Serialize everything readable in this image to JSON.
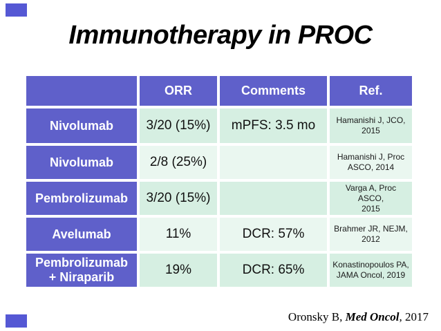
{
  "slide": {
    "title": "Immunotherapy in PROC",
    "citation": {
      "prefix": "Oronsky B, ",
      "journal": "Med Oncol",
      "suffix": ", 2017"
    }
  },
  "table": {
    "columns": [
      "",
      "ORR",
      "Comments",
      "Ref."
    ],
    "rows": [
      {
        "drug": "Nivolumab",
        "orr": "3/20 (15%)",
        "comments": "mPFS: 3.5 mo",
        "ref": "Hamanishi J, JCO,\n2015"
      },
      {
        "drug": "Nivolumab",
        "orr": "2/8 (25%)",
        "comments": "",
        "ref": "Hamanishi J, Proc\nASCO, 2014"
      },
      {
        "drug": "Pembrolizumab",
        "orr": "3/20 (15%)",
        "comments": "",
        "ref": "Varga A, Proc ASCO,\n2015"
      },
      {
        "drug": "Avelumab",
        "orr": "11%",
        "comments": "DCR: 57%",
        "ref": "Brahmer JR, NEJM,\n2012"
      },
      {
        "drug": "Pembrolizumab\n+ Niraparib",
        "orr": "19%",
        "comments": "DCR: 65%",
        "ref": "Konastinopoulos PA,\nJAMA Oncol, 2019"
      }
    ]
  },
  "colors": {
    "accent_purple": "#5f60ca",
    "corner_accent": "#5558d4",
    "row_band_mint": "#d6efe2",
    "row_band_light": "#eaf7f0",
    "header_text": "#ffffff",
    "body_text": "#111111"
  }
}
